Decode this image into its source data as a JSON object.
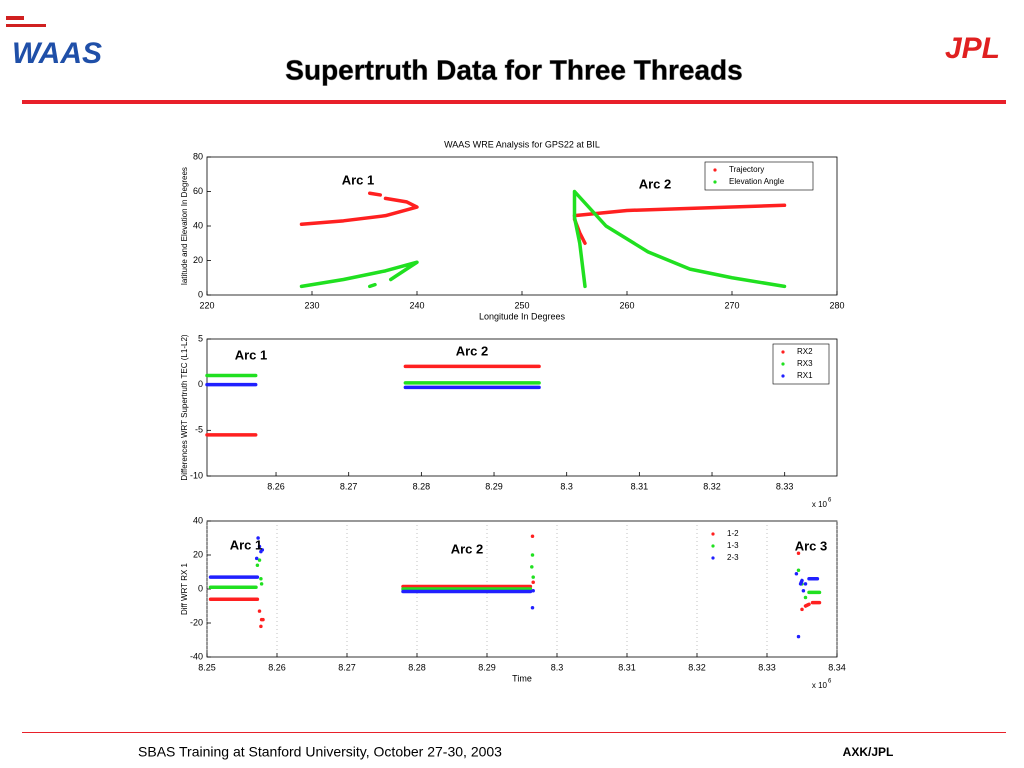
{
  "slide": {
    "title": "Supertruth Data for Three Threads",
    "logos": {
      "left": "WAAS",
      "right": "JPL"
    },
    "footer": {
      "left": "SBAS Training at Stanford University, October 27-30, 2003",
      "right": "AXK/JPL"
    }
  },
  "chart_data": [
    {
      "type": "line",
      "title": "WAAS WRE Analysis for GPS22 at BIL",
      "x_label": "Longitude In Degrees",
      "y_label": "latitude and Elevation In Degrees",
      "xlim": [
        220,
        280
      ],
      "xticks": [
        220,
        230,
        240,
        250,
        260,
        270,
        280
      ],
      "ylim": [
        0,
        80
      ],
      "yticks": [
        0,
        20,
        40,
        60,
        80
      ],
      "grid": false,
      "legend": "upper right",
      "annotations": [
        "Arc 1",
        "Arc 2"
      ],
      "series": [
        {
          "name": "Trajectory",
          "color": "#ff2020",
          "x": [
            229,
            233,
            237,
            240,
            239,
            237,
            null,
            235.5,
            236.5,
            null,
            255,
            255.5,
            256,
            null,
            255,
            260,
            265,
            270,
            275
          ],
          "values": [
            41,
            43,
            46,
            51,
            54,
            56,
            null,
            59,
            58,
            null,
            44,
            36,
            30,
            null,
            46,
            49,
            50,
            51,
            52
          ]
        },
        {
          "name": "Elevation Angle",
          "color": "#20e020",
          "x": [
            229,
            233,
            237,
            240,
            239,
            238,
            237.5,
            null,
            235.5,
            236,
            null,
            256,
            255.5,
            255,
            255,
            258,
            262,
            266,
            270,
            275
          ],
          "values": [
            5,
            9,
            14,
            19,
            15,
            11,
            9,
            null,
            5,
            6,
            null,
            5,
            30,
            45,
            60,
            40,
            25,
            15,
            10,
            5
          ]
        }
      ]
    },
    {
      "type": "line",
      "y_label": "Differences WRT Supertruth TEC (L1-L2)",
      "xlim": [
        8.2505,
        8.3372
      ],
      "xticks": [
        8.26,
        8.27,
        8.28,
        8.29,
        8.3,
        8.31,
        8.32,
        8.33
      ],
      "x_multiplier": {
        "base": "x 10",
        "exponent": "6"
      },
      "ylim": [
        -10,
        5
      ],
      "yticks": [
        -10,
        -5,
        0,
        5
      ],
      "grid": false,
      "legend": "upper right",
      "annotations": [
        "Arc 1",
        "Arc 2"
      ],
      "series": [
        {
          "name": "RX2",
          "color": "#ff2020",
          "x": [
            8.2505,
            8.2572,
            null,
            8.2778,
            8.2962
          ],
          "values": [
            -5.5,
            -5.5,
            null,
            2,
            2
          ]
        },
        {
          "name": "RX3",
          "color": "#20e020",
          "x": [
            8.2505,
            8.2572,
            null,
            8.2778,
            8.2962
          ],
          "values": [
            1,
            1,
            null,
            0.2,
            0.2
          ]
        },
        {
          "name": "RX1",
          "color": "#2020ff",
          "x": [
            8.2505,
            8.2572,
            null,
            8.2778,
            8.2962
          ],
          "values": [
            0,
            0,
            null,
            -0.3,
            -0.3
          ]
        }
      ]
    },
    {
      "type": "line",
      "x_label": "Time",
      "y_label": "Diff WRT RX 1",
      "xlim": [
        8.25,
        8.34
      ],
      "xticks": [
        8.25,
        8.26,
        8.27,
        8.28,
        8.29,
        8.3,
        8.31,
        8.32,
        8.33,
        8.34
      ],
      "x_multiplier": {
        "base": "x 10",
        "exponent": "6"
      },
      "ylim": [
        -40,
        40
      ],
      "yticks": [
        -40,
        -20,
        0,
        20,
        40
      ],
      "grid": true,
      "legend": "upper right",
      "annotations": [
        "Arc 1",
        "Arc 2",
        "Arc 3"
      ],
      "series": [
        {
          "name": "1-2",
          "color": "#ff2020",
          "x": [
            8.2505,
            8.2572,
            null,
            8.2575,
            null,
            8.2578,
            null,
            8.2577,
            null,
            8.258,
            null,
            8.278,
            8.2962,
            null,
            8.2965,
            null,
            8.2966,
            null,
            8.3345,
            null,
            8.335,
            null,
            8.3355,
            8.336,
            null,
            8.3365,
            8.3375
          ],
          "values": [
            -6,
            -6,
            null,
            -13,
            null,
            -18,
            null,
            -22,
            null,
            -18,
            null,
            1.5,
            1.5,
            null,
            31,
            null,
            4,
            null,
            21,
            null,
            -12,
            null,
            -10,
            -9,
            null,
            -8,
            -8
          ]
        },
        {
          "name": "1-3",
          "color": "#20e020",
          "x": [
            8.2505,
            8.257,
            null,
            8.2572,
            null,
            8.2575,
            null,
            8.2577,
            null,
            8.2578,
            null,
            8.278,
            8.2962,
            null,
            8.2965,
            null,
            8.2964,
            null,
            8.2966,
            null,
            8.3345,
            null,
            8.335,
            null,
            8.3355,
            null,
            8.336,
            8.3375
          ],
          "values": [
            1,
            1,
            null,
            14,
            null,
            17,
            null,
            6,
            null,
            3,
            null,
            0,
            0,
            null,
            20,
            null,
            13,
            null,
            7,
            null,
            11,
            null,
            3,
            null,
            -5,
            null,
            -2,
            -2
          ]
        },
        {
          "name": "2-3",
          "color": "#2020ff",
          "x": [
            8.2505,
            8.2572,
            null,
            8.2573,
            null,
            8.2575,
            null,
            8.2577,
            null,
            8.2579,
            null,
            8.2571,
            null,
            8.278,
            8.2962,
            null,
            8.2965,
            null,
            8.2966,
            null,
            8.3342,
            null,
            8.3345,
            null,
            8.3348,
            8.335,
            null,
            8.3352,
            null,
            8.3355,
            null,
            8.336,
            8.3372
          ],
          "values": [
            7,
            7,
            null,
            30,
            null,
            25,
            null,
            22,
            null,
            23,
            null,
            18,
            null,
            -1.5,
            -1.5,
            null,
            -11,
            null,
            -1,
            null,
            9,
            null,
            -28,
            null,
            3,
            5,
            null,
            -1,
            null,
            3,
            null,
            6,
            6
          ]
        }
      ]
    }
  ]
}
